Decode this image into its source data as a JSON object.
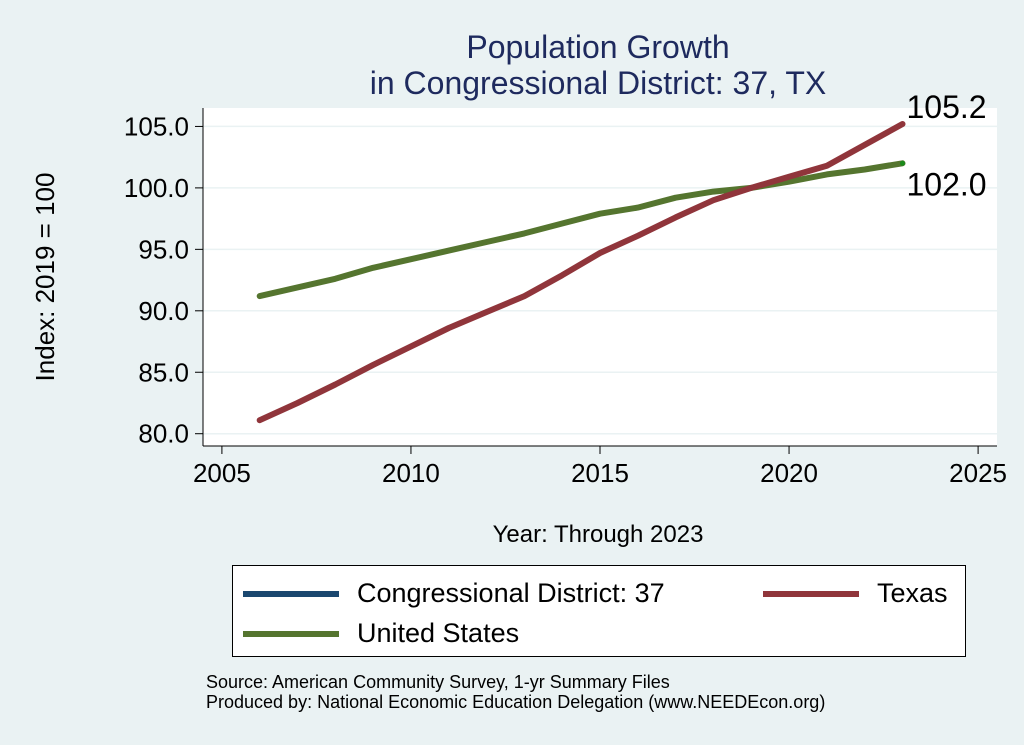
{
  "chart_data": {
    "type": "line",
    "title": [
      "Population Growth",
      "in Congressional District: 37, TX"
    ],
    "xlabel": "Year: Through 2023",
    "ylabel": "Index: 2019 = 100",
    "xlim": [
      2004.5,
      2025.5
    ],
    "ylim": [
      79,
      106.5
    ],
    "x_ticks": [
      2005,
      2010,
      2015,
      2020,
      2025
    ],
    "x_tick_labels": [
      "2005",
      "2010",
      "2015",
      "2020",
      "2025"
    ],
    "y_ticks": [
      80,
      85,
      90,
      95,
      100,
      105
    ],
    "y_tick_labels": [
      "80.0",
      "85.0",
      "90.0",
      "95.0",
      "100.0",
      "105.0"
    ],
    "grid": true,
    "legend_position": "bottom",
    "series": [
      {
        "name": "Congressional District: 37",
        "color": "#1a476f",
        "x": [],
        "values": []
      },
      {
        "name": "Texas",
        "color": "#90353b",
        "x": [
          2006,
          2007,
          2008,
          2009,
          2010,
          2011,
          2012,
          2013,
          2014,
          2015,
          2016,
          2017,
          2018,
          2019,
          2020,
          2021,
          2022,
          2023
        ],
        "values": [
          81.1,
          82.5,
          84.0,
          85.6,
          87.1,
          88.6,
          89.9,
          91.2,
          92.9,
          94.7,
          96.1,
          97.6,
          99.0,
          100.0,
          100.9,
          101.8,
          103.5,
          105.2
        ],
        "end_label": "105.2"
      },
      {
        "name": "United States",
        "color": "#55752f",
        "x": [
          2006,
          2007,
          2008,
          2009,
          2010,
          2011,
          2012,
          2013,
          2014,
          2015,
          2016,
          2017,
          2018,
          2019,
          2020,
          2021,
          2022,
          2023
        ],
        "values": [
          91.2,
          91.9,
          92.6,
          93.5,
          94.2,
          94.9,
          95.6,
          96.3,
          97.1,
          97.9,
          98.4,
          99.2,
          99.7,
          100.0,
          100.5,
          101.1,
          101.5,
          102.0
        ],
        "end_label": "102.0"
      }
    ],
    "source": [
      "Source: American Community Survey, 1-yr Summary Files",
      "Produced by: National Economic Education Delegation (www.NEEDEcon.org)"
    ]
  }
}
